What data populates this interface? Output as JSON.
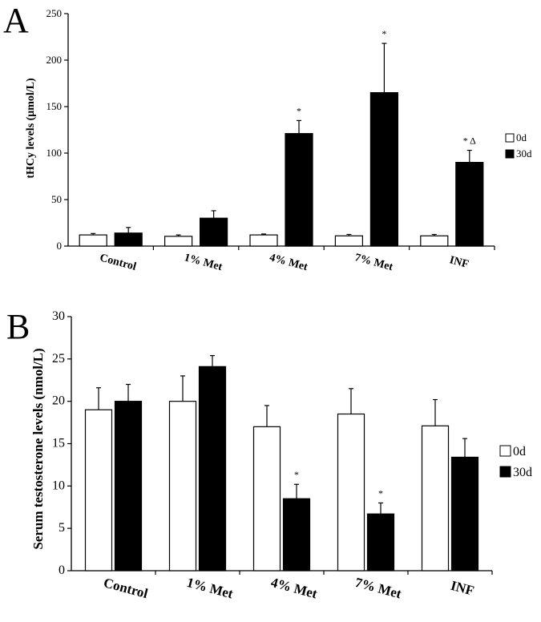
{
  "chart_data": [
    {
      "panel": "A",
      "type": "bar",
      "ylabel": "tHCy levels (μmol/L)",
      "ylim": [
        0,
        250
      ],
      "yticks": [
        0,
        50,
        100,
        150,
        200,
        250
      ],
      "categories": [
        "Control",
        "1% Met",
        "4% Met",
        "7% Met",
        "INF"
      ],
      "series": [
        {
          "name": "0d",
          "color": "#ffffff",
          "values": [
            12,
            10.5,
            12,
            11,
            11
          ],
          "errors": [
            1.5,
            1.5,
            1,
            1.5,
            1.5
          ]
        },
        {
          "name": "30d",
          "color": "#000000",
          "values": [
            14,
            30,
            121,
            165,
            90
          ],
          "errors": [
            6,
            8,
            14,
            53,
            13
          ]
        }
      ],
      "annotations": [
        {
          "category": "4% Met",
          "series": "30d",
          "text": "*"
        },
        {
          "category": "7% Met",
          "series": "30d",
          "text": "*"
        },
        {
          "category": "INF",
          "series": "30d",
          "text": "* Δ"
        }
      ],
      "legend_position": "right"
    },
    {
      "panel": "B",
      "type": "bar",
      "ylabel": "Serum testosterone levels (nmol/L)",
      "ylim": [
        0,
        30
      ],
      "yticks": [
        0,
        5,
        10,
        15,
        20,
        25,
        30
      ],
      "categories": [
        "Control",
        "1% Met",
        "4% Met",
        "7% Met",
        "INF"
      ],
      "series": [
        {
          "name": "0d",
          "color": "#ffffff",
          "values": [
            19,
            20,
            17,
            18.5,
            17.1
          ],
          "errors": [
            2.6,
            3,
            2.5,
            3,
            3.1
          ]
        },
        {
          "name": "30d",
          "color": "#000000",
          "values": [
            20,
            24.1,
            8.5,
            6.7,
            13.4
          ],
          "errors": [
            2,
            1.3,
            1.7,
            1.3,
            2.2
          ]
        }
      ],
      "annotations": [
        {
          "category": "4% Met",
          "series": "30d",
          "text": "*"
        },
        {
          "category": "7% Met",
          "series": "30d",
          "text": "*"
        }
      ],
      "legend_position": "right"
    }
  ]
}
